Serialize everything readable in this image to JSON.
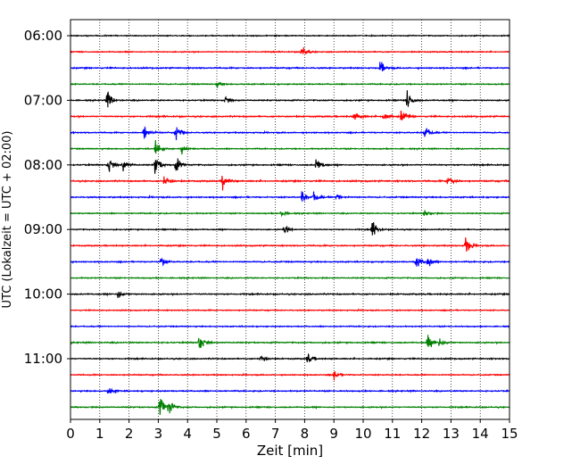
{
  "chart_data": {
    "type": "line",
    "xlabel": "Zeit  [min]",
    "ylabel": "UTC (Lokalzeit = UTC + 02:00)",
    "xlim": [
      0,
      15
    ],
    "x_ticks": [
      "0",
      "1",
      "2",
      "3",
      "4",
      "5",
      "6",
      "7",
      "8",
      "9",
      "10",
      "11",
      "12",
      "13",
      "14",
      "15"
    ],
    "grid": "vertical dotted",
    "y_tick_labels": [
      "06:00",
      "07:00",
      "08:00",
      "09:00",
      "10:00",
      "11:00"
    ],
    "row_colors": [
      "#000000",
      "#ff0000",
      "#0000ff",
      "#008000"
    ],
    "rows": [
      {
        "t": "06:00",
        "color": "#000000",
        "noise": 0.28,
        "events": []
      },
      {
        "t": "06:15",
        "color": "#ff0000",
        "noise": 0.3,
        "events": [
          {
            "x": 7.9,
            "amp": 1.0
          }
        ]
      },
      {
        "t": "06:30",
        "color": "#0000ff",
        "noise": 0.35,
        "events": [
          {
            "x": 10.6,
            "amp": 1.0
          }
        ]
      },
      {
        "t": "06:45",
        "color": "#008000",
        "noise": 0.3,
        "events": [
          {
            "x": 5.0,
            "amp": 0.5
          }
        ]
      },
      {
        "t": "07:00",
        "color": "#000000",
        "noise": 0.33,
        "events": [
          {
            "x": 1.25,
            "amp": 1.6
          },
          {
            "x": 5.3,
            "amp": 0.6
          },
          {
            "x": 11.5,
            "amp": 1.6
          }
        ]
      },
      {
        "t": "07:15",
        "color": "#ff0000",
        "noise": 0.38,
        "events": [
          {
            "x": 9.7,
            "amp": 1.1
          },
          {
            "x": 10.7,
            "amp": 1.0
          },
          {
            "x": 11.3,
            "amp": 1.0
          }
        ]
      },
      {
        "t": "07:30",
        "color": "#0000ff",
        "noise": 0.33,
        "events": [
          {
            "x": 2.5,
            "amp": 1.3
          },
          {
            "x": 3.6,
            "amp": 1.3
          },
          {
            "x": 12.1,
            "amp": 1.4
          }
        ]
      },
      {
        "t": "07:45",
        "color": "#008000",
        "noise": 0.3,
        "events": [
          {
            "x": 2.9,
            "amp": 1.5
          },
          {
            "x": 3.8,
            "amp": 0.8
          }
        ]
      },
      {
        "t": "08:00",
        "color": "#000000",
        "noise": 0.35,
        "events": [
          {
            "x": 1.3,
            "amp": 1.2
          },
          {
            "x": 1.8,
            "amp": 1.0
          },
          {
            "x": 2.9,
            "amp": 1.8
          },
          {
            "x": 3.6,
            "amp": 1.3
          },
          {
            "x": 8.4,
            "amp": 1.4
          }
        ]
      },
      {
        "t": "08:15",
        "color": "#ff0000",
        "noise": 0.38,
        "events": [
          {
            "x": 3.2,
            "amp": 1.0
          },
          {
            "x": 5.2,
            "amp": 1.5
          },
          {
            "x": 12.9,
            "amp": 0.9
          }
        ]
      },
      {
        "t": "08:30",
        "color": "#0000ff",
        "noise": 0.35,
        "events": [
          {
            "x": 7.9,
            "amp": 1.1
          },
          {
            "x": 8.3,
            "amp": 0.9
          },
          {
            "x": 9.1,
            "amp": 0.7
          }
        ]
      },
      {
        "t": "08:45",
        "color": "#008000",
        "noise": 0.3,
        "events": [
          {
            "x": 7.2,
            "amp": 0.6
          },
          {
            "x": 12.1,
            "amp": 0.6
          }
        ]
      },
      {
        "t": "09:00",
        "color": "#000000",
        "noise": 0.3,
        "events": [
          {
            "x": 7.3,
            "amp": 0.7
          },
          {
            "x": 10.3,
            "amp": 1.4
          }
        ]
      },
      {
        "t": "09:15",
        "color": "#ff0000",
        "noise": 0.33,
        "events": [
          {
            "x": 13.5,
            "amp": 1.3
          }
        ]
      },
      {
        "t": "09:30",
        "color": "#0000ff",
        "noise": 0.33,
        "events": [
          {
            "x": 3.1,
            "amp": 0.7
          },
          {
            "x": 11.8,
            "amp": 1.2
          },
          {
            "x": 12.2,
            "amp": 1.1
          }
        ]
      },
      {
        "t": "09:45",
        "color": "#008000",
        "noise": 0.3,
        "events": []
      },
      {
        "t": "10:00",
        "color": "#000000",
        "noise": 0.35,
        "events": [
          {
            "x": 1.6,
            "amp": 1.0
          }
        ]
      },
      {
        "t": "10:15",
        "color": "#ff0000",
        "noise": 0.28,
        "events": []
      },
      {
        "t": "10:30",
        "color": "#0000ff",
        "noise": 0.3,
        "events": []
      },
      {
        "t": "10:45",
        "color": "#008000",
        "noise": 0.35,
        "events": [
          {
            "x": 4.4,
            "amp": 1.4
          },
          {
            "x": 12.2,
            "amp": 1.2
          },
          {
            "x": 12.6,
            "amp": 1.0
          }
        ]
      },
      {
        "t": "11:00",
        "color": "#000000",
        "noise": 0.33,
        "events": [
          {
            "x": 6.5,
            "amp": 0.6
          },
          {
            "x": 8.1,
            "amp": 0.7
          }
        ]
      },
      {
        "t": "11:15",
        "color": "#ff0000",
        "noise": 0.3,
        "events": [
          {
            "x": 9.0,
            "amp": 0.9
          }
        ]
      },
      {
        "t": "11:30",
        "color": "#0000ff",
        "noise": 0.33,
        "events": [
          {
            "x": 1.3,
            "amp": 0.8
          }
        ]
      },
      {
        "t": "11:45",
        "color": "#008000",
        "noise": 0.33,
        "events": [
          {
            "x": 3.05,
            "amp": 1.9
          },
          {
            "x": 3.35,
            "amp": 1.5
          }
        ]
      }
    ]
  }
}
